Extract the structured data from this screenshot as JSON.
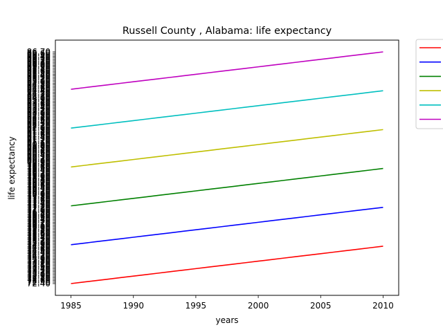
{
  "chart_data": {
    "type": "line",
    "title": "Russell County , Alabama: life expectancy",
    "xlabel": "years",
    "ylabel": "life expectancy",
    "xlim": [
      1983.75,
      2011.25
    ],
    "xticks": [
      1985,
      1990,
      1995,
      2000,
      2005,
      2010
    ],
    "ylim": [
      0,
      1
    ],
    "y_scale": "categorical (each series value plotted as its own tick label)",
    "legend_position": "upper-right-outside",
    "legend_labels_visible": false,
    "series": [
      {
        "color": "#ff0000",
        "x": [
          1985,
          1986,
          1987,
          1988,
          1989,
          1990,
          1991,
          1992,
          1993,
          1994,
          1995,
          1996,
          1997,
          1998,
          1999,
          2000,
          2001,
          2002,
          2003,
          2004,
          2005,
          2006,
          2007,
          2008,
          2009,
          2010
        ],
        "y": [
          72.4,
          72.5,
          72.6,
          72.7,
          72.8,
          72.9,
          73.0,
          73.1,
          73.2,
          73.3,
          73.4,
          73.5,
          73.6,
          73.1,
          73.7,
          73.8,
          73.9,
          74.0,
          74.1,
          74.2,
          74.3,
          74.4,
          74.5,
          74.6,
          74.7,
          74.8
        ]
      },
      {
        "color": "#0000ff",
        "x": [
          1985,
          1986,
          1987,
          1988,
          1989,
          1990,
          1991,
          1992,
          1993,
          1994,
          1995,
          1996,
          1997,
          1998,
          1999,
          2000,
          2001,
          2002,
          2003,
          2004,
          2005,
          2006,
          2007,
          2008,
          2009,
          2010
        ],
        "y": [
          74.9,
          75.0,
          75.1,
          75.2,
          75.3,
          75.4,
          75.5,
          75.6,
          75.6,
          75.7,
          75.8,
          75.9,
          76.0,
          76.1,
          76.1,
          76.2,
          76.3,
          76.4,
          76.5,
          76.6,
          76.7,
          76.8,
          76.9,
          77.0,
          77.1,
          77.2
        ]
      },
      {
        "color": "#008000",
        "x": [
          1985,
          1986,
          1987,
          1988,
          1989,
          1990,
          1991,
          1992,
          1993,
          1994,
          1995,
          1996,
          1997,
          1998,
          1999,
          2000,
          2001,
          2002,
          2003,
          2004,
          2005,
          2006,
          2007,
          2008,
          2009,
          2010
        ],
        "y": [
          77.3,
          77.3,
          77.4,
          77.5,
          77.6,
          77.7,
          77.8,
          77.9,
          78.0,
          78.1,
          78.2,
          78.3,
          78.4,
          78.5,
          78.6,
          78.7,
          78.0,
          78.1,
          78.8,
          78.9,
          79.0,
          79.1,
          79.2,
          79.3,
          79.4,
          79.5
        ]
      },
      {
        "color": "#bfbf00",
        "x": [
          1985,
          1986,
          1987,
          1988,
          1989,
          1990,
          1991,
          1992,
          1993,
          1994,
          1995,
          1996,
          1997,
          1998,
          1999,
          2000,
          2001,
          2002,
          2003,
          2004,
          2005,
          2006,
          2007,
          2008,
          2009,
          2010
        ],
        "y": [
          79.6,
          79.7,
          79.8,
          79.9,
          80.0,
          80.1,
          80.2,
          80.3,
          80.4,
          80.5,
          80.6,
          80.7,
          80.8,
          80.9,
          81.0,
          80.9,
          81.1,
          81.1,
          81.2,
          81.3,
          81.4,
          81.5,
          81.6,
          81.7,
          81.8,
          81.9
        ]
      },
      {
        "color": "#00bfbf",
        "x": [
          1985,
          1986,
          1987,
          1988,
          1989,
          1990,
          1991,
          1992,
          1993,
          1994,
          1995,
          1996,
          1997,
          1998,
          1999,
          2000,
          2001,
          2002,
          2003,
          2004,
          2005,
          2006,
          2007,
          2008,
          2009,
          2010
        ],
        "y": [
          82.0,
          82.1,
          82.2,
          82.3,
          82.4,
          82.5,
          82.6,
          82.7,
          82.8,
          82.9,
          83.0,
          83.1,
          83.2,
          83.3,
          83.4,
          83.5,
          83.6,
          83.7,
          83.8,
          83.9,
          84.0,
          84.1,
          84.2,
          84.3,
          74.5,
          84.4
        ]
      },
      {
        "color": "#bf00bf",
        "x": [
          1985,
          1986,
          1987,
          1988,
          1989,
          1990,
          1991,
          1992,
          1993,
          1994,
          1995,
          1996,
          1997,
          1998,
          1999,
          2000,
          2001,
          2002,
          2003,
          2004,
          2005,
          2006,
          2007,
          2008,
          2009,
          2010
        ],
        "y": [
          84.5,
          84.6,
          84.7,
          84.8,
          84.9,
          85.0,
          85.1,
          85.2,
          85.3,
          85.4,
          85.4,
          85.5,
          85.6,
          85.7,
          85.8,
          85.9,
          86.0,
          86.0,
          86.1,
          86.2,
          86.3,
          86.3,
          86.4,
          86.5,
          86.6,
          86.7
        ]
      }
    ]
  }
}
